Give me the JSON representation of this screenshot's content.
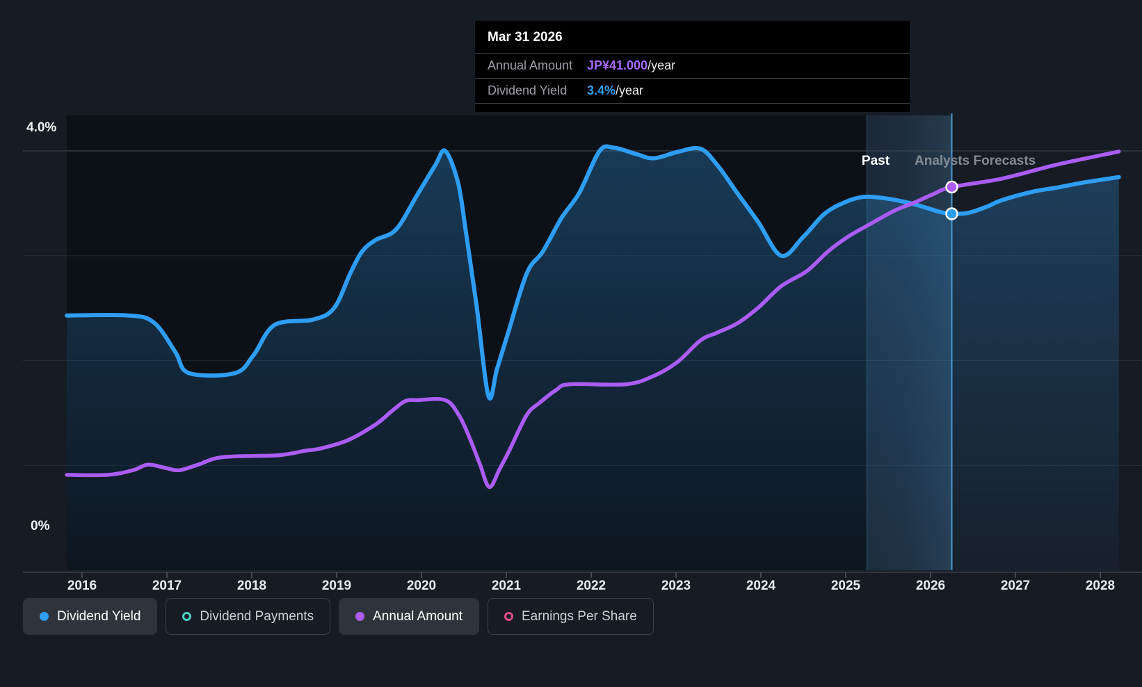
{
  "y_axis": {
    "top_label": "4.0%",
    "bottom_label": "0%"
  },
  "x_axis": {
    "years": [
      "2016",
      "2017",
      "2018",
      "2019",
      "2020",
      "2021",
      "2022",
      "2023",
      "2024",
      "2025",
      "2026",
      "2027",
      "2028"
    ]
  },
  "annotations": {
    "past_label": "Past",
    "forecast_label": "Analysts Forecasts"
  },
  "tooltip": {
    "date": "Mar 31 2026",
    "rows": [
      {
        "label": "Annual Amount",
        "value": "JP¥41.000",
        "suffix": "/year",
        "color": "#a96bf8"
      },
      {
        "label": "Dividend Yield",
        "value": "3.4%",
        "suffix": "/year",
        "color": "#2f9ff2"
      }
    ]
  },
  "legend": [
    {
      "label": "Dividend Yield",
      "marker": "filled",
      "color": "#2e9df4",
      "active": true
    },
    {
      "label": "Dividend Payments",
      "marker": "ring",
      "color": "#4dd0c2",
      "active": false
    },
    {
      "label": "Annual Amount",
      "marker": "filled",
      "color": "#ab5cf5",
      "active": true
    },
    {
      "label": "Earnings Per Share",
      "marker": "ring",
      "color": "#e64a8d",
      "active": false
    }
  ],
  "chart_data": {
    "type": "line",
    "title": "Dividend yield and payments history with analyst forecasts",
    "x_range": [
      2015.82,
      2028.22
    ],
    "grid": true,
    "past_end_year": 2025.25,
    "hover_year": 2026.25,
    "y_percent_axis": {
      "min": 0,
      "max": 4,
      "gridline_values": [
        4,
        3,
        2,
        1
      ],
      "top_tick_label": "4.0%",
      "bottom_tick_label": "0%"
    },
    "colors": {
      "background": "#161b24",
      "past_region": "#0c1118",
      "area_fill": "#2a78b4",
      "blue_line": "#2e9df4",
      "purple_line": "#ab5cf5",
      "crosshair": "#4da3e0",
      "gridline_top": "#434953",
      "axis_line": "#3a414b"
    },
    "series": [
      {
        "name": "Dividend Yield",
        "unit": "%",
        "axis": "percent",
        "color": "#2e9df4",
        "area": true,
        "hover_value": 3.4,
        "points": [
          [
            2015.82,
            2.43
          ],
          [
            2016.55,
            2.43
          ],
          [
            2016.85,
            2.36
          ],
          [
            2017.1,
            2.08
          ],
          [
            2017.26,
            1.88
          ],
          [
            2017.8,
            1.88
          ],
          [
            2018.02,
            2.05
          ],
          [
            2018.27,
            2.34
          ],
          [
            2018.72,
            2.39
          ],
          [
            2018.97,
            2.5
          ],
          [
            2019.16,
            2.83
          ],
          [
            2019.3,
            3.04
          ],
          [
            2019.46,
            3.15
          ],
          [
            2019.7,
            3.25
          ],
          [
            2019.95,
            3.58
          ],
          [
            2020.16,
            3.86
          ],
          [
            2020.28,
            4.0
          ],
          [
            2020.43,
            3.7
          ],
          [
            2020.52,
            3.25
          ],
          [
            2020.65,
            2.52
          ],
          [
            2020.79,
            1.66
          ],
          [
            2020.89,
            1.92
          ],
          [
            2021.02,
            2.26
          ],
          [
            2021.24,
            2.83
          ],
          [
            2021.43,
            3.04
          ],
          [
            2021.65,
            3.36
          ],
          [
            2021.86,
            3.6
          ],
          [
            2022.1,
            4.0
          ],
          [
            2022.27,
            4.03
          ],
          [
            2022.53,
            3.97
          ],
          [
            2022.74,
            3.93
          ],
          [
            2023.02,
            3.99
          ],
          [
            2023.29,
            4.02
          ],
          [
            2023.5,
            3.85
          ],
          [
            2023.72,
            3.6
          ],
          [
            2023.97,
            3.32
          ],
          [
            2024.24,
            3.0
          ],
          [
            2024.5,
            3.18
          ],
          [
            2024.75,
            3.4
          ],
          [
            2024.99,
            3.51
          ],
          [
            2025.2,
            3.56
          ],
          [
            2025.44,
            3.55
          ],
          [
            2025.77,
            3.5
          ],
          [
            2026.1,
            3.42
          ],
          [
            2026.25,
            3.4
          ],
          [
            2026.45,
            3.41
          ],
          [
            2026.67,
            3.47
          ],
          [
            2026.84,
            3.53
          ],
          [
            2027.2,
            3.61
          ],
          [
            2027.49,
            3.65
          ],
          [
            2027.82,
            3.7
          ],
          [
            2028.22,
            3.75
          ]
        ]
      },
      {
        "name": "Annual Amount",
        "unit": "JP¥",
        "axis": "amount",
        "color": "#ab5cf5",
        "area": false,
        "hover_value": 41.0,
        "points": [
          [
            2015.82,
            10.2
          ],
          [
            2016.3,
            10.2
          ],
          [
            2016.6,
            10.7
          ],
          [
            2016.78,
            11.3
          ],
          [
            2017.0,
            10.9
          ],
          [
            2017.15,
            10.7
          ],
          [
            2017.37,
            11.3
          ],
          [
            2017.66,
            12.1
          ],
          [
            2018.31,
            12.3
          ],
          [
            2018.64,
            12.8
          ],
          [
            2018.8,
            13.0
          ],
          [
            2019.13,
            13.9
          ],
          [
            2019.46,
            15.6
          ],
          [
            2019.66,
            17.1
          ],
          [
            2019.81,
            18.1
          ],
          [
            2019.95,
            18.2
          ],
          [
            2020.28,
            18.2
          ],
          [
            2020.44,
            16.6
          ],
          [
            2020.57,
            14.1
          ],
          [
            2020.69,
            11.3
          ],
          [
            2020.8,
            8.9
          ],
          [
            2020.92,
            10.8
          ],
          [
            2021.04,
            12.9
          ],
          [
            2021.24,
            16.6
          ],
          [
            2021.39,
            17.9
          ],
          [
            2021.59,
            19.3
          ],
          [
            2021.75,
            19.9
          ],
          [
            2022.41,
            19.9
          ],
          [
            2022.74,
            20.8
          ],
          [
            2023.02,
            22.3
          ],
          [
            2023.29,
            24.6
          ],
          [
            2023.48,
            25.4
          ],
          [
            2023.72,
            26.4
          ],
          [
            2023.97,
            28.1
          ],
          [
            2024.24,
            30.4
          ],
          [
            2024.54,
            32.0
          ],
          [
            2024.79,
            34.1
          ],
          [
            2025.03,
            35.7
          ],
          [
            2025.3,
            37.1
          ],
          [
            2025.58,
            38.5
          ],
          [
            2025.8,
            39.3
          ],
          [
            2026.02,
            40.2
          ],
          [
            2026.25,
            41.0
          ],
          [
            2026.84,
            41.9
          ],
          [
            2027.49,
            43.4
          ],
          [
            2028.22,
            44.8
          ]
        ]
      }
    ]
  }
}
